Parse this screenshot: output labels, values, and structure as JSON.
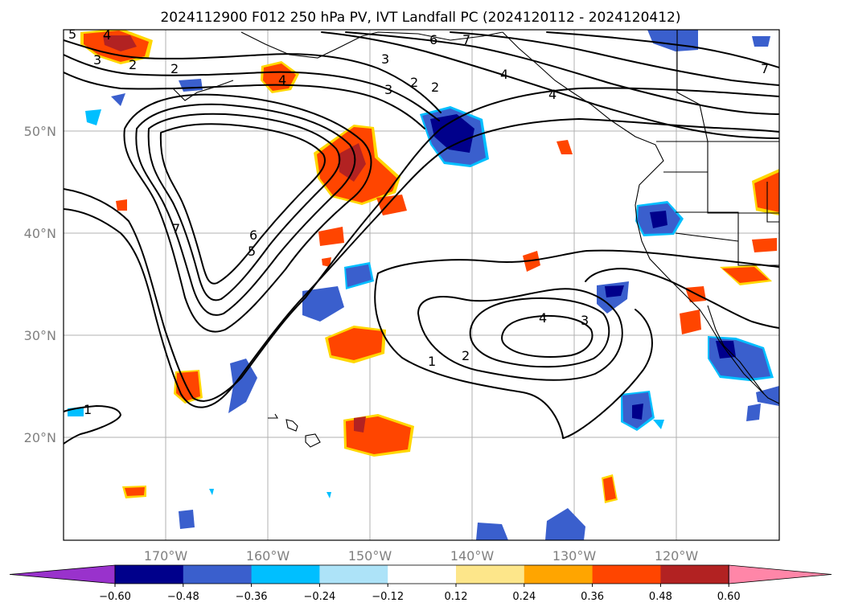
{
  "title": "2024112900 F012 250 hPa PV, IVT Landfall PC (2024120112 - 2024120412)",
  "map": {
    "lon_labels": [
      "170°W",
      "160°W",
      "150°W",
      "140°W",
      "130°W",
      "120°W"
    ],
    "lat_labels": [
      "50°N",
      "40°N",
      "30°N",
      "20°N"
    ],
    "grid": true,
    "contour_labels": [
      {
        "text": "5"
      },
      {
        "text": "4"
      },
      {
        "text": "3"
      },
      {
        "text": "2"
      },
      {
        "text": "2"
      },
      {
        "text": "4"
      },
      {
        "text": "3"
      },
      {
        "text": "6"
      },
      {
        "text": "7"
      },
      {
        "text": "3"
      },
      {
        "text": "2"
      },
      {
        "text": "2"
      },
      {
        "text": "4"
      },
      {
        "text": "4"
      },
      {
        "text": "7"
      },
      {
        "text": "6"
      },
      {
        "text": "5"
      },
      {
        "text": "7"
      },
      {
        "text": "4"
      },
      {
        "text": "3"
      },
      {
        "text": "1"
      },
      {
        "text": "2"
      },
      {
        "text": "1"
      }
    ]
  },
  "colorbar": {
    "ticks": [
      "−0.60",
      "−0.48",
      "−0.36",
      "−0.24",
      "−0.12",
      "0.12",
      "0.24",
      "0.36",
      "0.48",
      "0.60"
    ],
    "colors": [
      "#9932cc",
      "#00008b",
      "#3a5fcd",
      "#00bfff",
      "#ade3f8",
      "#ffffff",
      "#fde68a",
      "#ffa500",
      "#ff4500",
      "#b22222",
      "#ff86a8"
    ]
  },
  "shading_colors": {
    "neg_strong": "#00008b",
    "neg_mid": "#3a5fcd",
    "neg_weak": "#00bfff",
    "pos_weak": "#ffd700",
    "pos_mid": "#ff4500",
    "pos_strong": "#b22222"
  }
}
